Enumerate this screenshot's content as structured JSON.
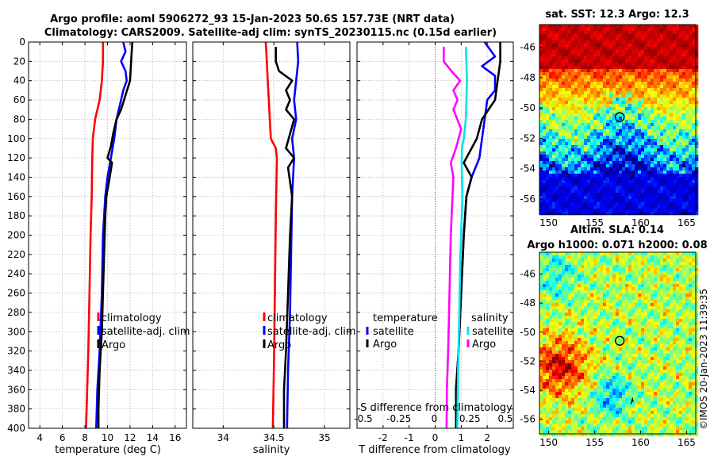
{
  "title_line1": "Argo profile: aoml 5906272_93 15-Jan-2023 50.6S 157.73E (NRT data)",
  "title_line2": "Climatology: CARS2009. Satellite-adj clim: synTS_20230115.nc (0.15d earlier)",
  "watermark": "©IMOS 20-Jan-2023 11:39:35",
  "colors": {
    "climatology": "#ff0000",
    "satellite": "#0000ff",
    "argo": "#000000",
    "sal_sat": "#00e5ee",
    "sal_argo": "#ff00ff",
    "grid": "#bbbbbb"
  },
  "chart_data": [
    {
      "type": "line",
      "id": "temperature",
      "xlabel": "temperature (deg C)",
      "ylabel": "",
      "xlim": [
        3,
        17
      ],
      "ylim": [
        400,
        0
      ],
      "xticks": [
        4,
        6,
        8,
        10,
        12,
        14,
        16
      ],
      "yticks": [
        0,
        20,
        40,
        60,
        80,
        100,
        120,
        140,
        160,
        180,
        200,
        220,
        240,
        260,
        280,
        300,
        320,
        340,
        360,
        380,
        400
      ],
      "legend": [
        "climatology",
        "satellite-adj. clim",
        "Argo"
      ],
      "series": [
        {
          "name": "climatology",
          "points": [
            [
              9.6,
              0
            ],
            [
              9.6,
              20
            ],
            [
              9.5,
              40
            ],
            [
              9.3,
              60
            ],
            [
              8.9,
              80
            ],
            [
              8.7,
              100
            ],
            [
              8.65,
              120
            ],
            [
              8.6,
              160
            ],
            [
              8.5,
              200
            ],
            [
              8.4,
              260
            ],
            [
              8.3,
              320
            ],
            [
              8.2,
              360
            ],
            [
              8.1,
              400
            ]
          ]
        },
        {
          "name": "satellite-adj. clim",
          "points": [
            [
              11.4,
              0
            ],
            [
              11.6,
              10
            ],
            [
              11.2,
              20
            ],
            [
              11.6,
              30
            ],
            [
              11.7,
              40
            ],
            [
              11.4,
              50
            ],
            [
              11.2,
              60
            ],
            [
              10.8,
              80
            ],
            [
              10.6,
              100
            ],
            [
              10.3,
              120
            ],
            [
              10.0,
              140
            ],
            [
              9.8,
              160
            ],
            [
              9.6,
              200
            ],
            [
              9.5,
              260
            ],
            [
              9.3,
              320
            ],
            [
              9.1,
              360
            ],
            [
              9.0,
              400
            ]
          ]
        },
        {
          "name": "Argo",
          "points": [
            [
              12.2,
              0
            ],
            [
              12.1,
              20
            ],
            [
              12.0,
              40
            ],
            [
              11.6,
              55
            ],
            [
              11.2,
              70
            ],
            [
              10.8,
              80
            ],
            [
              10.5,
              95
            ],
            [
              10.3,
              108
            ],
            [
              10.0,
              120
            ],
            [
              10.4,
              125
            ],
            [
              10.2,
              140
            ],
            [
              9.9,
              160
            ],
            [
              9.8,
              180
            ],
            [
              9.7,
              220
            ],
            [
              9.6,
              260
            ],
            [
              9.5,
              300
            ],
            [
              9.3,
              340
            ],
            [
              9.2,
              380
            ],
            [
              9.2,
              400
            ]
          ]
        }
      ]
    },
    {
      "type": "line",
      "id": "salinity",
      "xlabel": "salinity",
      "xlim": [
        33.7,
        35.25
      ],
      "ylim": [
        400,
        0
      ],
      "xticks": [
        34,
        34.5,
        35
      ],
      "xticklabels": [
        "34",
        "34.5",
        "35"
      ],
      "legend": [
        "climatology",
        "satellite-adj. clim",
        "Argo"
      ],
      "series": [
        {
          "name": "climatology",
          "points": [
            [
              34.42,
              0
            ],
            [
              34.43,
              20
            ],
            [
              34.44,
              40
            ],
            [
              34.45,
              60
            ],
            [
              34.46,
              80
            ],
            [
              34.47,
              100
            ],
            [
              34.52,
              110
            ],
            [
              34.53,
              120
            ],
            [
              34.52,
              180
            ],
            [
              34.51,
              260
            ],
            [
              34.5,
              340
            ],
            [
              34.49,
              400
            ]
          ]
        },
        {
          "name": "satellite-adj. clim",
          "points": [
            [
              34.73,
              0
            ],
            [
              34.74,
              20
            ],
            [
              34.72,
              40
            ],
            [
              34.7,
              60
            ],
            [
              34.72,
              80
            ],
            [
              34.68,
              100
            ],
            [
              34.7,
              120
            ],
            [
              34.68,
              160
            ],
            [
              34.67,
              220
            ],
            [
              34.66,
              280
            ],
            [
              34.64,
              340
            ],
            [
              34.63,
              400
            ]
          ]
        },
        {
          "name": "Argo",
          "points": [
            [
              34.52,
              5
            ],
            [
              34.52,
              20
            ],
            [
              34.55,
              30
            ],
            [
              34.68,
              40
            ],
            [
              34.62,
              50
            ],
            [
              34.66,
              60
            ],
            [
              34.62,
              70
            ],
            [
              34.7,
              80
            ],
            [
              34.66,
              95
            ],
            [
              34.62,
              110
            ],
            [
              34.7,
              120
            ],
            [
              34.64,
              130
            ],
            [
              34.68,
              160
            ],
            [
              34.66,
              200
            ],
            [
              34.64,
              260
            ],
            [
              34.62,
              320
            ],
            [
              34.6,
              360
            ],
            [
              34.6,
              400
            ]
          ]
        }
      ]
    },
    {
      "type": "line",
      "id": "differences",
      "xlabel": "T difference from climatology",
      "xlim": [
        -3,
        3
      ],
      "ylim": [
        400,
        0
      ],
      "xticks": [
        -2,
        -1,
        0,
        1,
        2
      ],
      "s_axis_label": "S difference from climatology",
      "s_xticks": [
        -0.5,
        -0.25,
        0,
        0.25,
        0.5
      ],
      "s_xticklabels": [
        "-0.5",
        "-0.25",
        "0",
        "0.25",
        "0.5"
      ],
      "legend_t_title": "temperature",
      "legend_s_title": "salinity",
      "legend_t": [
        "satellite",
        "Argo"
      ],
      "legend_s": [
        "satellite",
        "Argo"
      ],
      "series": [
        {
          "name": "T satellite",
          "points": [
            [
              1.9,
              0
            ],
            [
              2.3,
              15
            ],
            [
              1.8,
              25
            ],
            [
              2.3,
              35
            ],
            [
              2.3,
              50
            ],
            [
              2.0,
              60
            ],
            [
              1.9,
              80
            ],
            [
              1.8,
              100
            ],
            [
              1.7,
              120
            ],
            [
              1.4,
              140
            ],
            [
              1.2,
              160
            ],
            [
              1.1,
              200
            ],
            [
              1.0,
              260
            ],
            [
              0.9,
              320
            ],
            [
              0.8,
              360
            ],
            [
              0.8,
              400
            ]
          ]
        },
        {
          "name": "T Argo",
          "points": [
            [
              2.5,
              0
            ],
            [
              2.5,
              20
            ],
            [
              2.4,
              40
            ],
            [
              2.3,
              60
            ],
            [
              1.8,
              80
            ],
            [
              1.6,
              100
            ],
            [
              1.4,
              110
            ],
            [
              1.1,
              125
            ],
            [
              1.4,
              140
            ],
            [
              1.2,
              160
            ],
            [
              1.1,
              200
            ],
            [
              1.0,
              260
            ],
            [
              0.9,
              320
            ],
            [
              0.8,
              360
            ],
            [
              0.8,
              400
            ]
          ]
        },
        {
          "name": "S satellite",
          "points": [
            [
              1.18,
              5
            ],
            [
              1.22,
              40
            ],
            [
              1.18,
              80
            ],
            [
              1.1,
              100
            ],
            [
              1.03,
              110
            ],
            [
              1.02,
              130
            ],
            [
              1.05,
              160
            ],
            [
              0.97,
              220
            ],
            [
              0.93,
              280
            ],
            [
              0.88,
              340
            ],
            [
              0.85,
              400
            ]
          ]
        },
        {
          "name": "S Argo",
          "points": [
            [
              0.33,
              5
            ],
            [
              0.33,
              20
            ],
            [
              0.62,
              30
            ],
            [
              0.96,
              40
            ],
            [
              0.7,
              50
            ],
            [
              0.86,
              60
            ],
            [
              0.7,
              70
            ],
            [
              1.0,
              90
            ],
            [
              0.8,
              110
            ],
            [
              0.6,
              125
            ],
            [
              0.7,
              140
            ],
            [
              0.6,
              200
            ],
            [
              0.55,
              260
            ],
            [
              0.5,
              320
            ],
            [
              0.45,
              360
            ],
            [
              0.44,
              400
            ]
          ]
        }
      ]
    },
    {
      "type": "heatmap",
      "id": "sst_map",
      "title": "sat. SST: 12.3 Argo: 12.3",
      "xlim": [
        149,
        166
      ],
      "ylim": [
        -57,
        -44.5
      ],
      "xticks": [
        150,
        155,
        160,
        165
      ],
      "yticks": [
        -46,
        -48,
        -50,
        -52,
        -54,
        -56
      ],
      "argo_position": [
        157.73,
        -50.6
      ]
    },
    {
      "type": "heatmap",
      "id": "sla_map",
      "title": "Altim. SLA: 0.14",
      "subtitle": "Argo h1000: 0.071 h2000: 0.08",
      "xlim": [
        149,
        166
      ],
      "ylim": [
        -57,
        -44.5
      ],
      "xticks": [
        150,
        155,
        160,
        165
      ],
      "yticks": [
        -46,
        -48,
        -50,
        -52,
        -54,
        -56
      ],
      "argo_position": [
        157.73,
        -50.6
      ]
    }
  ]
}
